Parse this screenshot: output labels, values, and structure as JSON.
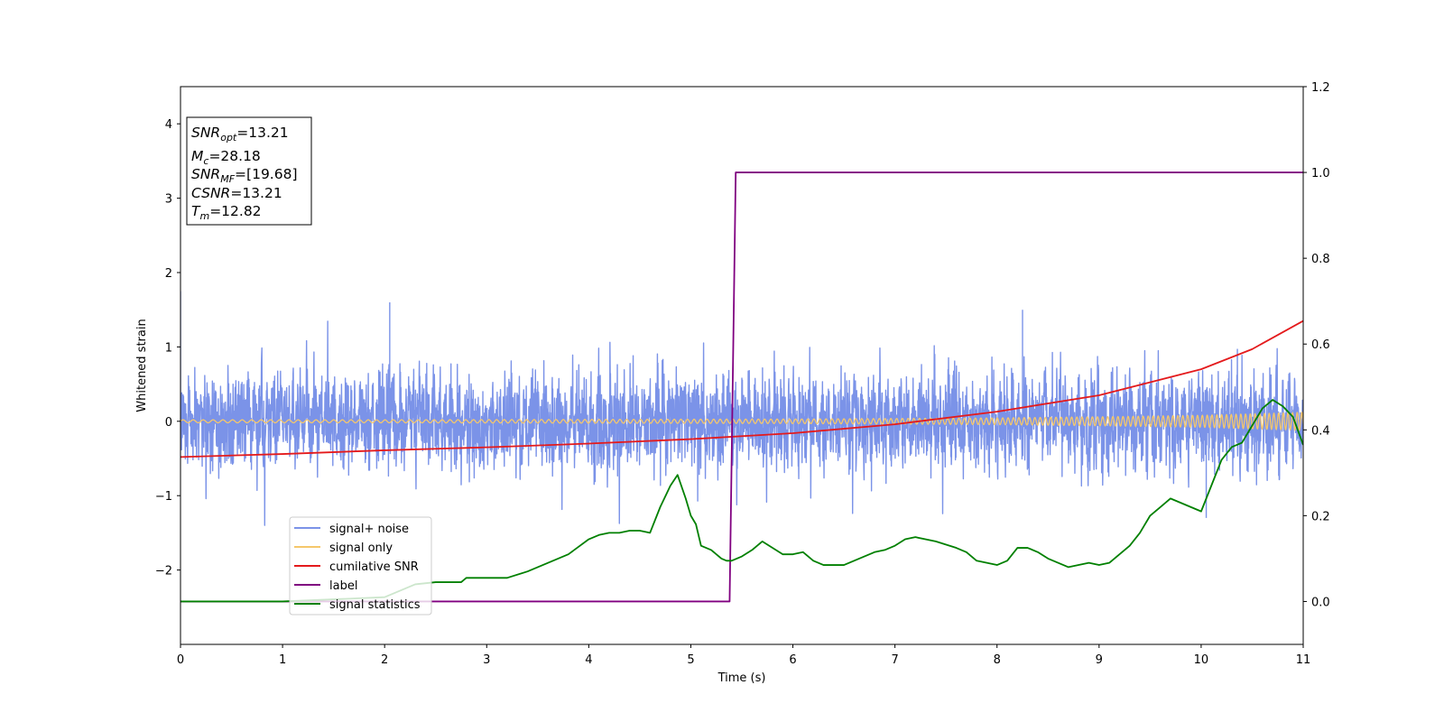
{
  "chart_data": {
    "type": "line",
    "xlabel": "Time (s)",
    "ylabel": "Whitened strain",
    "xlim": [
      0,
      11
    ],
    "ylim": [
      -3.0,
      4.5
    ],
    "y2lim": [
      -0.1,
      1.2
    ],
    "grid": false,
    "x_ticks": [
      0,
      1,
      2,
      3,
      4,
      5,
      6,
      7,
      8,
      9,
      10,
      11
    ],
    "y_ticks": [
      -2,
      -1,
      0,
      1,
      2,
      3,
      4
    ],
    "y2_ticks": [
      0.0,
      0.2,
      0.4,
      0.6,
      0.8,
      1.0,
      1.2
    ],
    "x_tick_labels": [
      "0",
      "1",
      "2",
      "3",
      "4",
      "5",
      "6",
      "7",
      "8",
      "9",
      "10",
      "11"
    ],
    "y_tick_labels": [
      "−2",
      "−1",
      "0",
      "1",
      "2",
      "3",
      "4"
    ],
    "y2_tick_labels": [
      "0.0",
      "0.2",
      "0.4",
      "0.6",
      "0.8",
      "1.0",
      "1.2"
    ],
    "annotation": [
      {
        "main": "SNR",
        "sub": "opt",
        "value": "=13.21"
      },
      {
        "main": "M",
        "sub": "c",
        "value": "=28.18"
      },
      {
        "main": "SNR",
        "sub": "MF",
        "value": "=[19.68]"
      },
      {
        "main": "CSNR",
        "sub": "",
        "value": "=13.21"
      },
      {
        "main": "T",
        "sub": "m",
        "value": "=12.82"
      }
    ],
    "legend_position": "lower-left",
    "series": [
      {
        "name": "signal+ noise",
        "axis": "left",
        "color": "#7b93e8",
        "style": "dense noise centered on 0, typical amplitude about 0.6, peaks near ±1.5",
        "envelope_y": [
          -1.4,
          1.6
        ],
        "notable_x": [
          0.0,
          2.05,
          8.25,
          10.05
        ],
        "notable_y": [
          1.75,
          1.6,
          1.5,
          -1.3
        ]
      },
      {
        "name": "signal only",
        "axis": "left",
        "color": "#f5c76b",
        "style": "chirp, amplitude grows from about 0.02 to 0.12 toward 11 s",
        "x": [
          0,
          2,
          4,
          6,
          8,
          9,
          10,
          10.5,
          11
        ],
        "amplitude": [
          0.02,
          0.02,
          0.025,
          0.03,
          0.045,
          0.06,
          0.08,
          0.1,
          0.12
        ]
      },
      {
        "name": "cumilative SNR",
        "axis": "left",
        "color": "#e41a1c",
        "x": [
          0,
          1,
          2,
          3,
          4,
          5,
          6,
          7,
          8,
          9,
          10,
          10.5,
          11
        ],
        "y": [
          -0.48,
          -0.44,
          -0.39,
          -0.35,
          -0.3,
          -0.24,
          -0.16,
          -0.04,
          0.13,
          0.35,
          0.7,
          0.97,
          1.35
        ]
      },
      {
        "name": "label",
        "axis": "right",
        "color": "#800080",
        "x": [
          0,
          5.38,
          5.44,
          11
        ],
        "y": [
          0.0,
          0.0,
          1.0,
          1.0
        ]
      },
      {
        "name": "signal statistics",
        "axis": "right",
        "color": "#008000",
        "x": [
          0,
          0.5,
          1,
          1.5,
          2,
          2.3,
          2.5,
          2.75,
          2.8,
          3,
          3.2,
          3.4,
          3.6,
          3.8,
          4.0,
          4.1,
          4.2,
          4.3,
          4.4,
          4.5,
          4.6,
          4.7,
          4.8,
          4.87,
          4.95,
          5.0,
          5.05,
          5.1,
          5.2,
          5.3,
          5.35,
          5.4,
          5.5,
          5.6,
          5.7,
          5.8,
          5.9,
          6.0,
          6.1,
          6.2,
          6.3,
          6.4,
          6.5,
          6.6,
          6.7,
          6.8,
          6.9,
          7.0,
          7.1,
          7.2,
          7.4,
          7.6,
          7.7,
          7.8,
          8.0,
          8.1,
          8.2,
          8.3,
          8.4,
          8.5,
          8.6,
          8.7,
          8.8,
          8.9,
          9.0,
          9.1,
          9.2,
          9.3,
          9.4,
          9.5,
          9.6,
          9.7,
          9.8,
          9.9,
          10.0,
          10.1,
          10.2,
          10.3,
          10.4,
          10.5,
          10.6,
          10.7,
          10.8,
          10.9,
          11.0
        ],
        "y": [
          0.0,
          0.0,
          0.0,
          0.005,
          0.01,
          0.04,
          0.045,
          0.045,
          0.055,
          0.055,
          0.055,
          0.07,
          0.09,
          0.11,
          0.145,
          0.155,
          0.16,
          0.16,
          0.165,
          0.165,
          0.16,
          0.22,
          0.27,
          0.295,
          0.24,
          0.2,
          0.18,
          0.13,
          0.12,
          0.1,
          0.095,
          0.095,
          0.105,
          0.12,
          0.14,
          0.125,
          0.11,
          0.11,
          0.115,
          0.095,
          0.085,
          0.085,
          0.085,
          0.095,
          0.105,
          0.115,
          0.12,
          0.13,
          0.145,
          0.15,
          0.14,
          0.125,
          0.115,
          0.095,
          0.085,
          0.095,
          0.125,
          0.125,
          0.115,
          0.1,
          0.09,
          0.08,
          0.085,
          0.09,
          0.085,
          0.09,
          0.11,
          0.13,
          0.16,
          0.2,
          0.22,
          0.24,
          0.23,
          0.22,
          0.21,
          0.27,
          0.33,
          0.36,
          0.37,
          0.41,
          0.45,
          0.47,
          0.455,
          0.43,
          0.365
        ]
      }
    ]
  }
}
